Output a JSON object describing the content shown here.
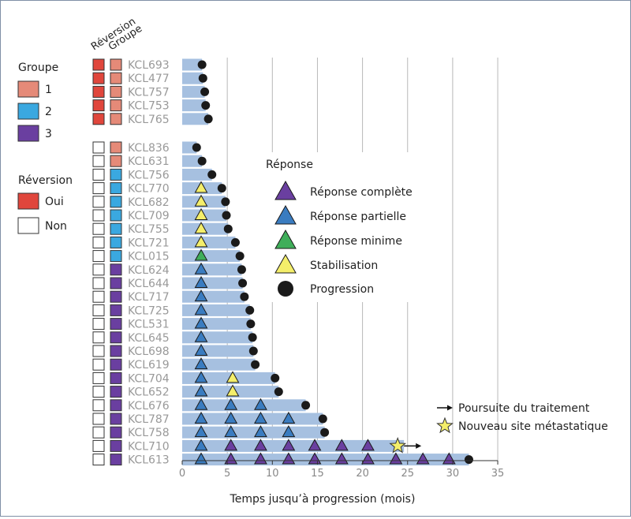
{
  "chart_data": {
    "type": "bar",
    "orientation": "horizontal",
    "xlabel": "Temps jusqu’à progression (mois)",
    "xlim": [
      0,
      35
    ],
    "xticks": [
      0,
      5,
      10,
      15,
      20,
      25,
      30,
      35
    ],
    "grid": "vertical",
    "column_headers": [
      "Réversion",
      "Groupe"
    ],
    "legend_groupe": {
      "title": "Groupe",
      "items": [
        {
          "label": "1",
          "color": "#e58a78"
        },
        {
          "label": "2",
          "color": "#3aa8e0"
        },
        {
          "label": "3",
          "color": "#6a3fa0"
        }
      ]
    },
    "legend_reversion": {
      "title": "Réversion",
      "items": [
        {
          "label": "Oui",
          "color": "#e0463c"
        },
        {
          "label": "Non",
          "color": "#ffffff"
        }
      ]
    },
    "legend_reponse": {
      "title": "Réponse",
      "items": [
        {
          "label": "Réponse complète",
          "marker": "triangle",
          "color": "#6a3fa0"
        },
        {
          "label": "Réponse partielle",
          "marker": "triangle",
          "color": "#3a7cc0"
        },
        {
          "label": "Réponse minime",
          "marker": "triangle",
          "color": "#3fae5a"
        },
        {
          "label": "Stabilisation",
          "marker": "triangle",
          "color": "#f4ee6a"
        },
        {
          "label": "Progression",
          "marker": "circle",
          "color": "#1a1a1a"
        }
      ]
    },
    "legend_other": [
      {
        "label": "Poursuite du traitement",
        "marker": "arrow"
      },
      {
        "label": "Nouveau site métastatique",
        "marker": "star"
      }
    ],
    "response_colors": {
      "CR": "#6a3fa0",
      "PR": "#3a7cc0",
      "MR": "#3fae5a",
      "SD": "#f4ee6a"
    },
    "bar_color": "#a6c0e0",
    "patients": [
      {
        "id": "KCL693",
        "groupe": 1,
        "reversion": "Oui",
        "months": 2.2,
        "end": "progression",
        "markers": []
      },
      {
        "id": "KCL477",
        "groupe": 1,
        "reversion": "Oui",
        "months": 2.3,
        "end": "progression",
        "markers": []
      },
      {
        "id": "KCL757",
        "groupe": 1,
        "reversion": "Oui",
        "months": 2.5,
        "end": "progression",
        "markers": []
      },
      {
        "id": "KCL753",
        "groupe": 1,
        "reversion": "Oui",
        "months": 2.6,
        "end": "progression",
        "markers": []
      },
      {
        "id": "KCL765",
        "groupe": 1,
        "reversion": "Oui",
        "months": 2.9,
        "end": "progression",
        "markers": []
      },
      {
        "id": "KCL836",
        "groupe": 1,
        "reversion": "Non",
        "months": 1.6,
        "end": "progression",
        "markers": []
      },
      {
        "id": "KCL631",
        "groupe": 1,
        "reversion": "Non",
        "months": 2.2,
        "end": "progression",
        "markers": []
      },
      {
        "id": "KCL756",
        "groupe": 2,
        "reversion": "Non",
        "months": 3.3,
        "end": "progression",
        "markers": []
      },
      {
        "id": "KCL770",
        "groupe": 2,
        "reversion": "Non",
        "months": 4.4,
        "end": "progression",
        "markers": [
          {
            "x": 2.1,
            "r": "SD"
          }
        ]
      },
      {
        "id": "KCL682",
        "groupe": 2,
        "reversion": "Non",
        "months": 4.8,
        "end": "progression",
        "markers": [
          {
            "x": 2.1,
            "r": "SD"
          }
        ]
      },
      {
        "id": "KCL709",
        "groupe": 2,
        "reversion": "Non",
        "months": 4.9,
        "end": "progression",
        "markers": [
          {
            "x": 2.1,
            "r": "SD"
          }
        ]
      },
      {
        "id": "KCL755",
        "groupe": 2,
        "reversion": "Non",
        "months": 5.1,
        "end": "progression",
        "markers": [
          {
            "x": 2.1,
            "r": "SD"
          }
        ]
      },
      {
        "id": "KCL721",
        "groupe": 2,
        "reversion": "Non",
        "months": 5.9,
        "end": "progression",
        "markers": [
          {
            "x": 2.1,
            "r": "SD"
          }
        ]
      },
      {
        "id": "KCL015",
        "groupe": 2,
        "reversion": "Non",
        "months": 6.4,
        "end": "progression",
        "markers": [
          {
            "x": 2.1,
            "r": "MR"
          }
        ]
      },
      {
        "id": "KCL624",
        "groupe": 3,
        "reversion": "Non",
        "months": 6.6,
        "end": "progression",
        "markers": [
          {
            "x": 2.1,
            "r": "PR"
          }
        ]
      },
      {
        "id": "KCL644",
        "groupe": 3,
        "reversion": "Non",
        "months": 6.7,
        "end": "progression",
        "markers": [
          {
            "x": 2.1,
            "r": "PR"
          }
        ]
      },
      {
        "id": "KCL717",
        "groupe": 3,
        "reversion": "Non",
        "months": 6.9,
        "end": "progression",
        "markers": [
          {
            "x": 2.1,
            "r": "PR"
          }
        ]
      },
      {
        "id": "KCL725",
        "groupe": 3,
        "reversion": "Non",
        "months": 7.5,
        "end": "progression",
        "markers": [
          {
            "x": 2.1,
            "r": "PR"
          }
        ]
      },
      {
        "id": "KCL531",
        "groupe": 3,
        "reversion": "Non",
        "months": 7.6,
        "end": "progression",
        "markers": [
          {
            "x": 2.1,
            "r": "PR"
          }
        ]
      },
      {
        "id": "KCL645",
        "groupe": 3,
        "reversion": "Non",
        "months": 7.8,
        "end": "progression",
        "markers": [
          {
            "x": 2.1,
            "r": "PR"
          }
        ]
      },
      {
        "id": "KCL698",
        "groupe": 3,
        "reversion": "Non",
        "months": 7.9,
        "end": "progression",
        "markers": [
          {
            "x": 2.1,
            "r": "PR"
          }
        ]
      },
      {
        "id": "KCL619",
        "groupe": 3,
        "reversion": "Non",
        "months": 8.1,
        "end": "progression",
        "markers": [
          {
            "x": 2.1,
            "r": "PR"
          }
        ]
      },
      {
        "id": "KCL704",
        "groupe": 3,
        "reversion": "Non",
        "months": 10.3,
        "end": "progression",
        "markers": [
          {
            "x": 2.1,
            "r": "PR"
          },
          {
            "x": 5.6,
            "r": "SD"
          }
        ]
      },
      {
        "id": "KCL652",
        "groupe": 3,
        "reversion": "Non",
        "months": 10.7,
        "end": "progression",
        "markers": [
          {
            "x": 2.1,
            "r": "PR"
          },
          {
            "x": 5.6,
            "r": "SD"
          }
        ]
      },
      {
        "id": "KCL676",
        "groupe": 3,
        "reversion": "Non",
        "months": 13.7,
        "end": "progression",
        "markers": [
          {
            "x": 2.1,
            "r": "PR"
          },
          {
            "x": 5.4,
            "r": "PR"
          },
          {
            "x": 8.7,
            "r": "PR"
          }
        ]
      },
      {
        "id": "KCL787",
        "groupe": 3,
        "reversion": "Non",
        "months": 15.6,
        "end": "progression",
        "markers": [
          {
            "x": 2.1,
            "r": "PR"
          },
          {
            "x": 5.4,
            "r": "PR"
          },
          {
            "x": 8.7,
            "r": "PR"
          },
          {
            "x": 11.8,
            "r": "PR"
          }
        ]
      },
      {
        "id": "KCL758",
        "groupe": 3,
        "reversion": "Non",
        "months": 15.8,
        "end": "progression",
        "markers": [
          {
            "x": 2.1,
            "r": "PR"
          },
          {
            "x": 5.4,
            "r": "PR"
          },
          {
            "x": 8.7,
            "r": "PR"
          },
          {
            "x": 11.8,
            "r": "PR"
          }
        ]
      },
      {
        "id": "KCL710",
        "groupe": 3,
        "reversion": "Non",
        "months": 24.6,
        "end": "ongoing",
        "star_at": 23.9,
        "markers": [
          {
            "x": 2.1,
            "r": "PR"
          },
          {
            "x": 5.4,
            "r": "CR"
          },
          {
            "x": 8.7,
            "r": "CR"
          },
          {
            "x": 11.8,
            "r": "CR"
          },
          {
            "x": 14.7,
            "r": "CR"
          },
          {
            "x": 17.7,
            "r": "CR"
          },
          {
            "x": 20.6,
            "r": "CR"
          }
        ]
      },
      {
        "id": "KCL613",
        "groupe": 3,
        "reversion": "Non",
        "months": 31.8,
        "end": "progression",
        "markers": [
          {
            "x": 2.1,
            "r": "PR"
          },
          {
            "x": 5.4,
            "r": "CR"
          },
          {
            "x": 8.7,
            "r": "CR"
          },
          {
            "x": 11.8,
            "r": "CR"
          },
          {
            "x": 14.7,
            "r": "CR"
          },
          {
            "x": 17.7,
            "r": "CR"
          },
          {
            "x": 20.6,
            "r": "CR"
          },
          {
            "x": 23.7,
            "r": "CR"
          },
          {
            "x": 26.7,
            "r": "CR"
          },
          {
            "x": 29.6,
            "r": "CR"
          }
        ]
      }
    ]
  }
}
